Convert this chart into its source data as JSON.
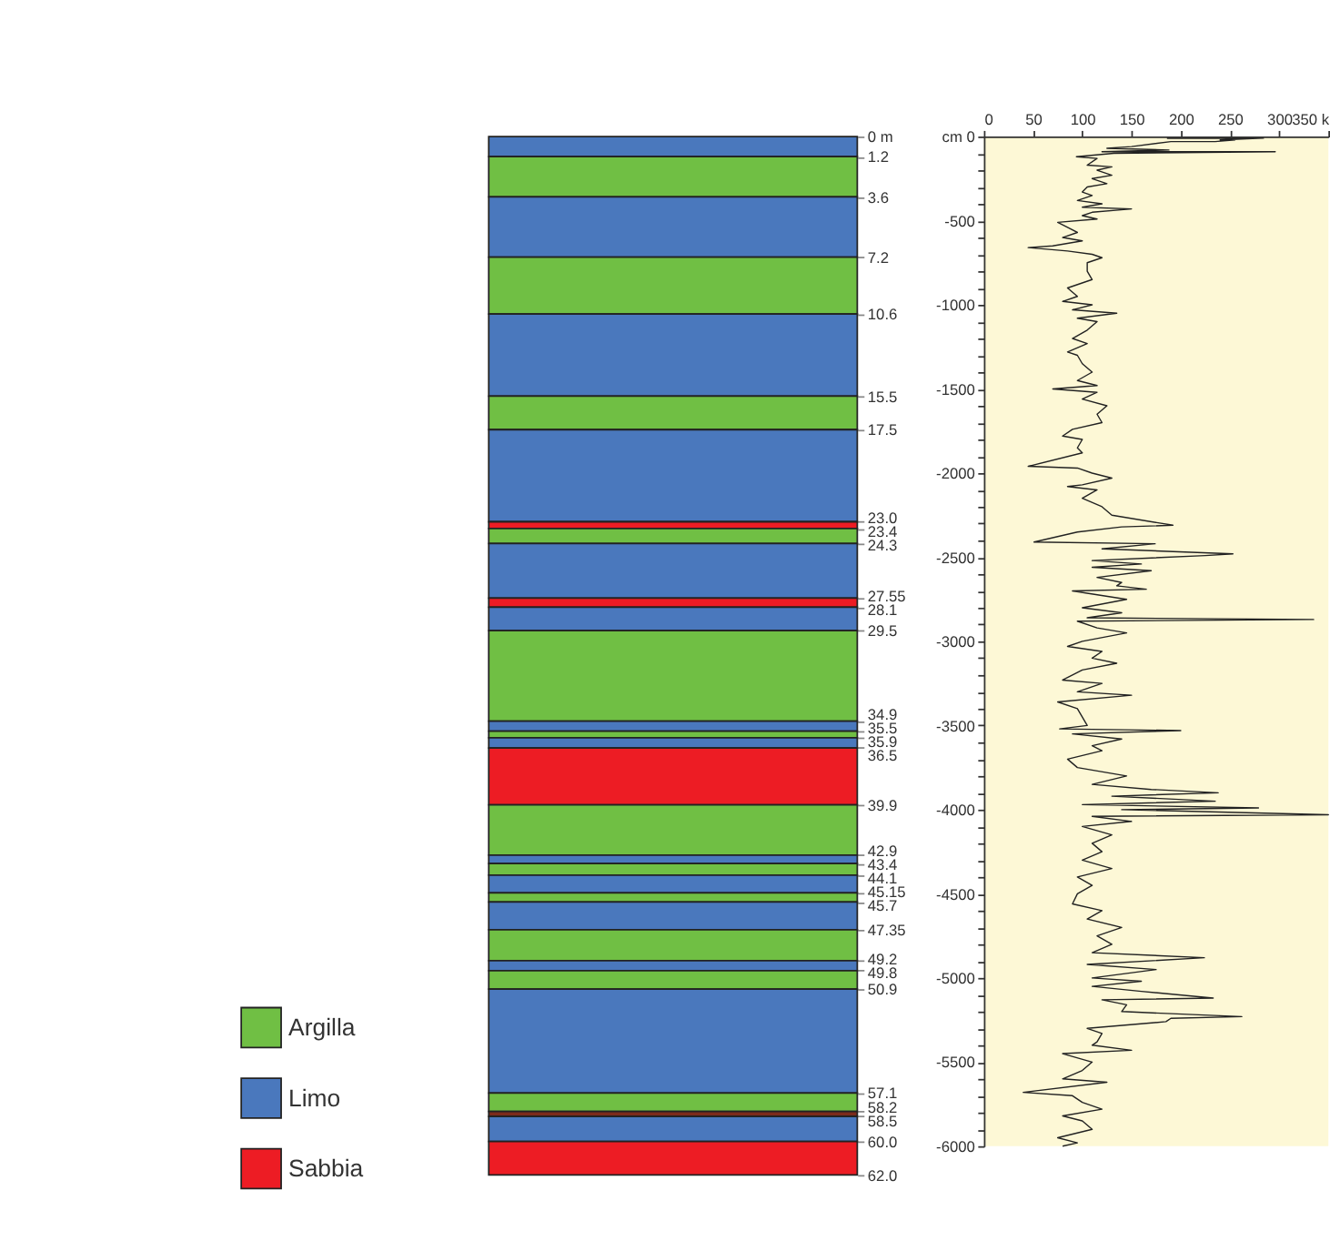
{
  "chart_data": [
    {
      "type": "bar",
      "stacked": true,
      "categories": [
        null
      ],
      "ylim": [
        62,
        0
      ],
      "tick_labels": "y",
      "legend": "bottom left",
      "grid": false,
      "yticks": [
        {
          "value": 0,
          "label": "0 m"
        },
        1.2,
        3.6,
        7.2,
        10.6,
        15.5,
        17.5,
        {
          "value": 23,
          "label": "23.0"
        },
        23.4,
        24.3,
        27.55,
        28.1,
        29.5,
        34.9,
        35.5,
        35.9,
        36.5,
        39.9,
        42.9,
        43.4,
        44.1,
        45.15,
        45.7,
        47.35,
        49.2,
        49.8,
        50.9,
        57.1,
        58.2,
        58.5,
        {
          "value": 60,
          "label": "60.0"
        },
        {
          "value": 62,
          "label": "62.0"
        }
      ],
      "series": [
        {
          "color": "#4a78bd",
          "values": [
            1.2
          ]
        },
        {
          "name": "Argilla",
          "color": "#70bf44",
          "values": [
            2.4
          ]
        },
        {
          "name": "Limo",
          "color": "#4a78bd",
          "values": [
            3.6
          ]
        },
        {
          "color": "#70bf44",
          "values": [
            3.4
          ]
        },
        {
          "color": "#4a78bd",
          "values": [
            4.9
          ]
        },
        {
          "color": "#70bf44",
          "values": [
            2.0
          ]
        },
        {
          "color": "#4a78bd",
          "values": [
            5.5
          ]
        },
        {
          "name": "Sabbia",
          "color": "#ed1c24",
          "values": [
            0.4
          ]
        },
        {
          "color": "#70bf44",
          "values": [
            0.9
          ]
        },
        {
          "color": "#4a78bd",
          "values": [
            3.25
          ]
        },
        {
          "color": "#ed1c24",
          "values": [
            0.55
          ]
        },
        {
          "color": "#4a78bd",
          "values": [
            1.4
          ]
        },
        {
          "color": "#70bf44",
          "values": [
            5.4
          ]
        },
        {
          "color": "#4a78bd",
          "values": [
            0.6
          ]
        },
        {
          "color": "#70bf44",
          "values": [
            0.4
          ]
        },
        {
          "color": "#4a78bd",
          "values": [
            0.6
          ]
        },
        {
          "color": "#ed1c24",
          "values": [
            3.4
          ]
        },
        {
          "color": "#70bf44",
          "values": [
            3.0
          ]
        },
        {
          "color": "#4a78bd",
          "values": [
            0.5
          ]
        },
        {
          "color": "#70bf44",
          "values": [
            0.7
          ]
        },
        {
          "color": "#4a78bd",
          "values": [
            1.05
          ]
        },
        {
          "color": "#70bf44",
          "values": [
            0.55
          ]
        },
        {
          "color": "#4a78bd",
          "values": [
            1.65
          ]
        },
        {
          "color": "#70bf44",
          "values": [
            1.85
          ]
        },
        {
          "color": "#4a78bd",
          "values": [
            0.6
          ]
        },
        {
          "color": "#70bf44",
          "values": [
            1.1
          ]
        },
        {
          "color": "#4a78bd",
          "values": [
            6.2
          ]
        },
        {
          "color": "#70bf44",
          "values": [
            1.1
          ]
        },
        {
          "color": "#7b2b1a",
          "values": [
            0.3
          ]
        },
        {
          "color": "#4a78bd",
          "values": [
            1.5
          ]
        },
        {
          "color": "#ed1c24",
          "values": [
            2.0
          ]
        }
      ]
    },
    {
      "type": "line",
      "xlim": [
        0,
        350
      ],
      "ylim": [
        -6000,
        0
      ],
      "grid": false,
      "xticks": [
        0,
        50,
        100,
        150,
        200,
        250,
        300,
        {
          "value": 350,
          "label": "350 k"
        }
      ],
      "yticks": [
        {
          "value": 0,
          "label": "cm 0"
        },
        {
          "value": -100,
          "label": null
        },
        {
          "value": -200,
          "label": null
        },
        {
          "value": -300,
          "label": null
        },
        {
          "value": -400,
          "label": null
        },
        -500,
        {
          "value": -600,
          "label": null
        },
        {
          "value": -700,
          "label": null
        },
        {
          "value": -800,
          "label": null
        },
        {
          "value": -900,
          "label": null
        },
        -1000,
        {
          "value": -1100,
          "label": null
        },
        {
          "value": -1200,
          "label": null
        },
        {
          "value": -1300,
          "label": null
        },
        {
          "value": -1400,
          "label": null
        },
        -1500,
        {
          "value": -1600,
          "label": null
        },
        {
          "value": -1700,
          "label": null
        },
        {
          "value": -1800,
          "label": null
        },
        {
          "value": -1900,
          "label": null
        },
        -2000,
        {
          "value": -2100,
          "label": null
        },
        {
          "value": -2200,
          "label": null
        },
        {
          "value": -2300,
          "label": null
        },
        {
          "value": -2400,
          "label": null
        },
        -2500,
        {
          "value": -2600,
          "label": null
        },
        {
          "value": -2700,
          "label": null
        },
        {
          "value": -2800,
          "label": null
        },
        {
          "value": -2900,
          "label": null
        },
        -3000,
        {
          "value": -3100,
          "label": null
        },
        {
          "value": -3200,
          "label": null
        },
        {
          "value": -3300,
          "label": null
        },
        {
          "value": -3400,
          "label": null
        },
        -3500,
        {
          "value": -3600,
          "label": null
        },
        {
          "value": -3700,
          "label": null
        },
        {
          "value": -3800,
          "label": null
        },
        {
          "value": -3900,
          "label": null
        },
        -4000,
        {
          "value": -4100,
          "label": null
        },
        {
          "value": -4200,
          "label": null
        },
        {
          "value": -4300,
          "label": null
        },
        {
          "value": -4400,
          "label": null
        },
        -4500,
        {
          "value": -4600,
          "label": null
        },
        {
          "value": -4700,
          "label": null
        },
        {
          "value": -4800,
          "label": null
        },
        {
          "value": -4900,
          "label": null
        },
        -5000,
        {
          "value": -5100,
          "label": null
        },
        {
          "value": -5200,
          "label": null
        },
        {
          "value": -5300,
          "label": null
        },
        {
          "value": -5400,
          "label": null
        },
        -5500,
        {
          "value": -5600,
          "label": null
        },
        {
          "value": -5700,
          "label": null
        },
        {
          "value": -5800,
          "label": null
        },
        {
          "value": -5900,
          "label": null
        },
        -6000
      ],
      "series": [
        {
          "color": "#222222",
          "x": [
            186,
            284,
            240,
            255,
            235,
            190,
            150,
            125,
            188,
            120,
            296,
            132,
            94,
            115,
            105,
            130,
            115,
            130,
            110,
            125,
            105,
            100,
            110,
            95,
            120,
            100,
            150,
            110,
            100,
            115,
            75,
            85,
            95,
            80,
            100,
            70,
            45,
            85,
            110,
            120,
            105,
            105,
            110,
            85,
            95,
            80,
            110,
            90,
            135,
            95,
            115,
            105,
            90,
            105,
            85,
            95,
            100,
            110,
            95,
            115,
            70,
            115,
            100,
            125,
            115,
            120,
            90,
            80,
            100,
            95,
            100,
            45,
            95,
            110,
            130,
            100,
            85,
            115,
            100,
            120,
            130,
            192,
            140,
            95,
            51,
            174,
            120,
            253,
            225,
            110,
            160,
            110,
            170,
            115,
            140,
            135,
            165,
            90,
            145,
            100,
            140,
            105,
            335,
            95,
            115,
            145,
            100,
            85,
            120,
            110,
            135,
            100,
            80,
            120,
            95,
            150,
            75,
            95,
            100,
            105,
            77,
            200,
            90,
            140,
            110,
            120,
            85,
            95,
            145,
            110,
            170,
            238,
            130,
            235,
            100,
            279,
            140,
            350,
            110,
            150,
            100,
            130,
            110,
            120,
            100,
            130,
            95,
            110,
            95,
            90,
            120,
            105,
            140,
            115,
            130,
            110,
            224,
            105,
            175,
            110,
            160,
            110,
            160,
            233,
            120,
            145,
            140,
            262,
            190,
            185,
            105,
            120,
            115,
            110,
            150,
            80,
            110,
            100,
            80,
            125,
            40,
            90,
            100,
            120,
            80,
            100,
            110,
            75,
            95,
            80
          ],
          "values": [
            -10,
            -10,
            -20,
            -20,
            -30,
            -30,
            -60,
            -70,
            -80,
            -90,
            -90,
            -100,
            -120,
            -130,
            -170,
            -180,
            -200,
            -230,
            -250,
            -280,
            -300,
            -330,
            -350,
            -380,
            -400,
            -420,
            -430,
            -450,
            -470,
            -490,
            -510,
            -540,
            -570,
            -600,
            -620,
            -650,
            -660,
            -680,
            -700,
            -720,
            -750,
            -800,
            -850,
            -900,
            -950,
            -980,
            -1000,
            -1030,
            -1050,
            -1080,
            -1100,
            -1150,
            -1200,
            -1230,
            -1280,
            -1300,
            -1350,
            -1400,
            -1450,
            -1480,
            -1500,
            -1520,
            -1560,
            -1600,
            -1650,
            -1700,
            -1740,
            -1780,
            -1800,
            -1850,
            -1880,
            -1960,
            -1970,
            -2000,
            -2030,
            -2070,
            -2080,
            -2100,
            -2150,
            -2200,
            -2250,
            -2310,
            -2320,
            -2350,
            -2410,
            -2420,
            -2450,
            -2480,
            -2490,
            -2520,
            -2540,
            -2560,
            -2580,
            -2620,
            -2650,
            -2670,
            -2690,
            -2700,
            -2750,
            -2800,
            -2830,
            -2860,
            -2870,
            -2880,
            -2920,
            -2950,
            -3000,
            -3030,
            -3060,
            -3100,
            -3130,
            -3170,
            -3230,
            -3250,
            -3300,
            -3320,
            -3360,
            -3400,
            -3450,
            -3500,
            -3520,
            -3530,
            -3550,
            -3580,
            -3620,
            -3650,
            -3700,
            -3750,
            -3800,
            -3850,
            -3880,
            -3900,
            -3920,
            -3950,
            -3970,
            -3990,
            -4000,
            -4030,
            -4040,
            -4070,
            -4100,
            -4150,
            -4200,
            -4250,
            -4300,
            -4350,
            -4400,
            -4450,
            -4500,
            -4560,
            -4600,
            -4650,
            -4700,
            -4750,
            -4800,
            -4850,
            -4880,
            -4920,
            -4950,
            -5000,
            -5020,
            -5050,
            -5080,
            -5120,
            -5130,
            -5160,
            -5200,
            -5230,
            -5240,
            -5260,
            -5300,
            -5330,
            -5380,
            -5400,
            -5430,
            -5450,
            -5500,
            -5550,
            -5600,
            -5620,
            -5680,
            -5700,
            -5740,
            -5780,
            -5820,
            -5850,
            -5900,
            -5950,
            -5980,
            -6000
          ]
        }
      ]
    }
  ]
}
